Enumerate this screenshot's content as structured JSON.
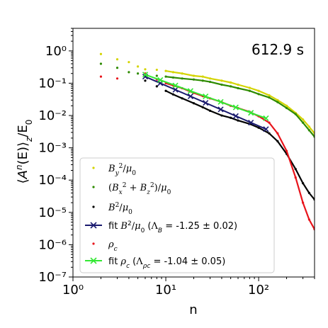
{
  "chart_data": {
    "type": "scatter",
    "time_label": "612.9 s",
    "xlabel": "n",
    "ylabel": "⟨Aⁿ(E)⟩_z/E₀",
    "xscale": "log",
    "yscale": "log",
    "xlim": [
      1,
      400
    ],
    "ylim": [
      1e-07,
      5
    ],
    "x_ticks": [
      {
        "v": 1,
        "label": "10⁰"
      },
      {
        "v": 10,
        "label": "10¹"
      },
      {
        "v": 100,
        "label": "10²"
      }
    ],
    "y_ticks": [
      {
        "v": 1,
        "label": "10⁰"
      },
      {
        "v": 0.1,
        "label": "10⁻¹"
      },
      {
        "v": 0.01,
        "label": "10⁻²"
      },
      {
        "v": 0.001,
        "label": "10⁻³"
      },
      {
        "v": 0.0001,
        "label": "10⁻⁴"
      },
      {
        "v": 1e-05,
        "label": "10⁻⁵"
      },
      {
        "v": 1e-06,
        "label": "10⁻⁶"
      },
      {
        "v": 1e-07,
        "label": "10⁻⁷"
      }
    ],
    "grid": false,
    "legend_position": "bottom-left",
    "series": [
      {
        "name": "By²/μ0",
        "color": "#d4d400",
        "style": "points",
        "points": [
          [
            2,
            0.8
          ],
          [
            3,
            0.55
          ],
          [
            4,
            0.45
          ],
          [
            5,
            0.33
          ],
          [
            6,
            0.27
          ],
          [
            8,
            0.26
          ],
          [
            10,
            0.24
          ],
          [
            12,
            0.22
          ],
          [
            15,
            0.2
          ],
          [
            20,
            0.17
          ],
          [
            25,
            0.16
          ],
          [
            30,
            0.14
          ],
          [
            40,
            0.12
          ],
          [
            50,
            0.105
          ],
          [
            60,
            0.09
          ],
          [
            80,
            0.072
          ],
          [
            100,
            0.058
          ],
          [
            130,
            0.042
          ],
          [
            160,
            0.03
          ],
          [
            200,
            0.02
          ],
          [
            250,
            0.012
          ],
          [
            300,
            0.0075
          ],
          [
            350,
            0.0045
          ],
          [
            400,
            0.0028
          ]
        ]
      },
      {
        "name": "(Bx² + Bz²)/μ0",
        "color": "#2e8b00",
        "style": "points",
        "points": [
          [
            2,
            0.4
          ],
          [
            3,
            0.3
          ],
          [
            4,
            0.22
          ],
          [
            5,
            0.2
          ],
          [
            6,
            0.18
          ],
          [
            8,
            0.17
          ],
          [
            10,
            0.16
          ],
          [
            12,
            0.15
          ],
          [
            15,
            0.14
          ],
          [
            20,
            0.13
          ],
          [
            25,
            0.12
          ],
          [
            30,
            0.11
          ],
          [
            40,
            0.09
          ],
          [
            50,
            0.08
          ],
          [
            60,
            0.07
          ],
          [
            80,
            0.058
          ],
          [
            100,
            0.046
          ],
          [
            130,
            0.036
          ],
          [
            160,
            0.026
          ],
          [
            200,
            0.017
          ],
          [
            250,
            0.011
          ],
          [
            300,
            0.006
          ],
          [
            350,
            0.0035
          ],
          [
            400,
            0.0022
          ]
        ]
      },
      {
        "name": "B²/μ0",
        "color": "#000000",
        "style": "points",
        "points": [
          [
            6,
            0.12
          ],
          [
            8,
            0.08
          ],
          [
            10,
            0.058
          ],
          [
            12,
            0.045
          ],
          [
            15,
            0.034
          ],
          [
            20,
            0.024
          ],
          [
            25,
            0.018
          ],
          [
            30,
            0.014
          ],
          [
            40,
            0.01
          ],
          [
            50,
            0.0085
          ],
          [
            60,
            0.007
          ],
          [
            80,
            0.0055
          ],
          [
            100,
            0.0042
          ],
          [
            130,
            0.0028
          ],
          [
            160,
            0.0016
          ],
          [
            200,
            0.00065
          ],
          [
            250,
            0.00022
          ],
          [
            300,
            8e-05
          ],
          [
            350,
            4e-05
          ],
          [
            400,
            2.5e-05
          ]
        ]
      },
      {
        "name": "fit B²/μ0 (ΛB = -1.25 ± 0.02)",
        "color": "#1a1a6e",
        "style": "fit",
        "slope": -1.25,
        "x_range": [
          6,
          120
        ],
        "y_at_start": 0.16
      },
      {
        "name": "ρc",
        "color": "#e8141b",
        "style": "points",
        "points": [
          [
            2,
            0.16
          ],
          [
            3,
            0.14
          ],
          [
            6,
            0.2
          ],
          [
            8,
            0.13
          ],
          [
            10,
            0.1
          ],
          [
            12,
            0.085
          ],
          [
            15,
            0.07
          ],
          [
            20,
            0.05
          ],
          [
            25,
            0.04
          ],
          [
            30,
            0.034
          ],
          [
            40,
            0.026
          ],
          [
            50,
            0.02
          ],
          [
            60,
            0.017
          ],
          [
            80,
            0.013
          ],
          [
            100,
            0.0095
          ],
          [
            130,
            0.006
          ],
          [
            160,
            0.0028
          ],
          [
            200,
            0.0008
          ],
          [
            250,
            0.00012
          ],
          [
            300,
            2e-05
          ],
          [
            350,
            6e-06
          ],
          [
            400,
            3e-06
          ]
        ]
      },
      {
        "name": "fit ρc (Λρc = -1.04 ± 0.05)",
        "color": "#33e833",
        "style": "fit",
        "slope": -1.04,
        "x_range": [
          6,
          120
        ],
        "y_at_start": 0.185
      }
    ],
    "legend": [
      {
        "label": "By²/μ0"
      },
      {
        "label": "(Bx² + Bz²)/μ0"
      },
      {
        "label": "B²/μ0"
      },
      {
        "label": "fit B²/μ0 (ΛB = -1.25 ± 0.02)"
      },
      {
        "label": "ρc"
      },
      {
        "label": "fit ρc (Λρc = -1.04 ± 0.05)"
      }
    ]
  }
}
